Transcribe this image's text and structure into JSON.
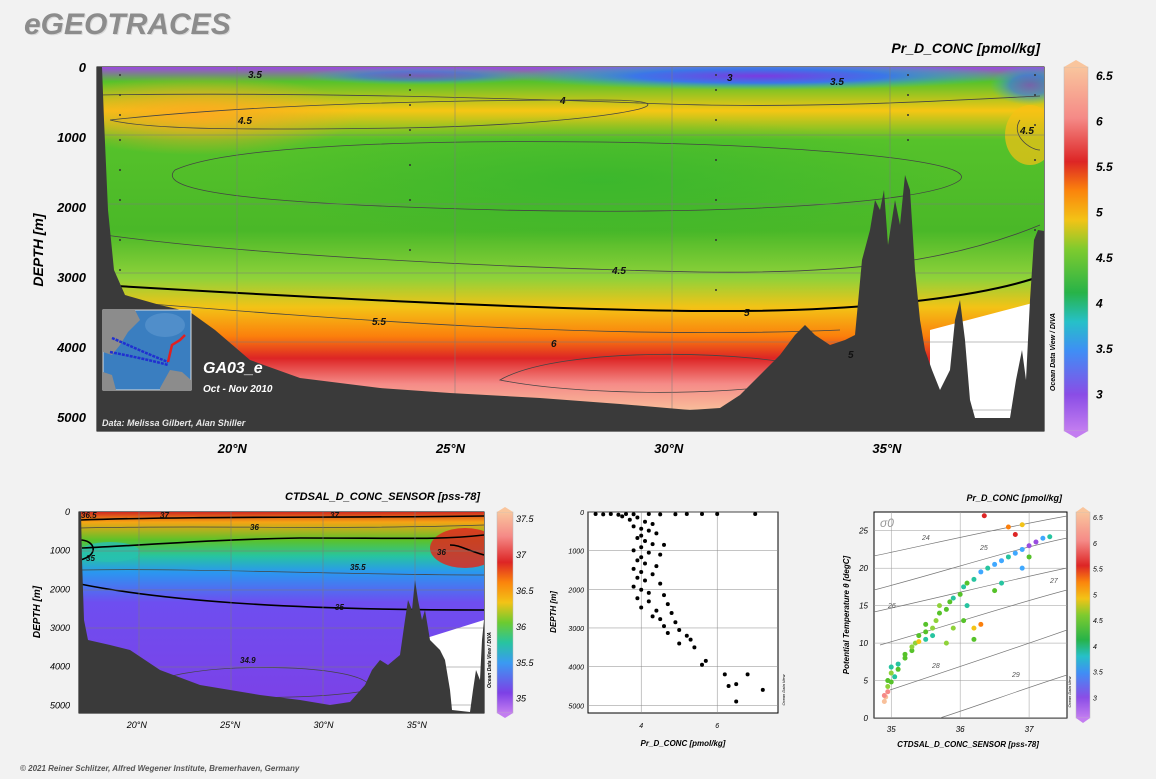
{
  "logo": "eGEOTRACES",
  "footer": "© 2021 Reiner Schlitzer, Alfred Wegener Institute, Bremerhaven, Germany",
  "main_section": {
    "title": "Pr_D_CONC [pmol/kg]",
    "ylabel": "DEPTH [m]",
    "ytick_labels": [
      "0",
      "1000",
      "2000",
      "3000",
      "4000",
      "5000"
    ],
    "ytick_values": [
      0,
      1000,
      2000,
      3000,
      4000,
      5000
    ],
    "xtick_labels": [
      "20°N",
      "25°N",
      "30°N",
      "35°N"
    ],
    "xtick_values": [
      20,
      25,
      30,
      35
    ],
    "xlim": [
      16.9,
      38.6
    ],
    "ylim": [
      0,
      5200
    ],
    "colorbar_labels": [
      "6.5",
      "6",
      "5.5",
      "5",
      "4.5",
      "4",
      "3.5",
      "3"
    ],
    "colorbar_values": [
      6.5,
      6,
      5.5,
      5,
      4.5,
      4,
      3.5,
      3
    ],
    "colorbar_range": [
      2.6,
      6.6
    ],
    "contour_labels": [
      "3.5",
      "3",
      "3.5",
      "4",
      "4.5",
      "4.5",
      "4.5",
      "5",
      "5.5",
      "6",
      "5"
    ],
    "cruise": "GA03_e",
    "dates": "Oct - Nov 2010",
    "credit": "Data: Melissa Gilbert, Alan Shiller",
    "odv_label": "Ocean Data View / DIVA"
  },
  "salinity_section": {
    "title": "CTDSAL_D_CONC_SENSOR [pss-78]",
    "ylabel": "DEPTH [m]",
    "ytick_labels": [
      "0",
      "1000",
      "2000",
      "3000",
      "4000",
      "5000"
    ],
    "ytick_values": [
      0,
      1000,
      2000,
      3000,
      4000,
      5000
    ],
    "xtick_labels": [
      "20°N",
      "25°N",
      "30°N",
      "35°N"
    ],
    "xtick_values": [
      20,
      25,
      30,
      35
    ],
    "xlim": [
      16.9,
      38.6
    ],
    "ylim": [
      0,
      5200
    ],
    "colorbar_labels": [
      "37.5",
      "37",
      "36.5",
      "36",
      "35.5",
      "35"
    ],
    "colorbar_values": [
      37.5,
      37,
      36.5,
      36,
      35.5,
      35
    ],
    "colorbar_range": [
      34.8,
      37.6
    ],
    "contour_labels": [
      "36.5",
      "37",
      "37",
      "36",
      "36",
      "35",
      "35.5",
      "35",
      "34.9"
    ],
    "odv_label": "Ocean Data View / DIVA"
  },
  "chart_data": [
    {
      "type": "heatmap",
      "title": "Pr_D_CONC [pmol/kg]",
      "xlabel": "",
      "ylabel": "DEPTH [m]",
      "x_ticks": [
        "20°N",
        "25°N",
        "30°N",
        "35°N"
      ],
      "ylim": [
        0,
        5200
      ],
      "colorbar_range": [
        2.6,
        6.6
      ],
      "colorscale": [
        "#9a4de0",
        "#3fa8ff",
        "#27c4a0",
        "#56c22a",
        "#8fd23a",
        "#f3c316",
        "#fb7f0c",
        "#dd2525",
        "#f58a87",
        "#f8c09a"
      ]
    },
    {
      "type": "heatmap",
      "title": "CTDSAL_D_CONC_SENSOR [pss-78]",
      "xlabel": "",
      "ylabel": "DEPTH [m]",
      "x_ticks": [
        "20°N",
        "25°N",
        "30°N",
        "35°N"
      ],
      "ylim": [
        0,
        5200
      ],
      "colorbar_range": [
        34.8,
        37.6
      ]
    },
    {
      "type": "scatter",
      "title": "",
      "xlabel": "Pr_D_CONC [pmol/kg]",
      "ylabel": "DEPTH [m]",
      "xtick_labels": [
        "4",
        "6"
      ],
      "xtick_values": [
        4,
        6
      ],
      "ytick_labels": [
        "0",
        "1000",
        "2000",
        "3000",
        "4000",
        "5000"
      ],
      "ytick_values": [
        0,
        1000,
        2000,
        3000,
        4000,
        5000
      ],
      "xlim": [
        2.6,
        7.6
      ],
      "ylim": [
        0,
        5200
      ],
      "odv_label": "Ocean Data View",
      "points": [
        [
          2.8,
          0
        ],
        [
          3.0,
          10
        ],
        [
          3.2,
          0
        ],
        [
          3.4,
          20
        ],
        [
          3.6,
          0
        ],
        [
          3.8,
          5
        ],
        [
          4.2,
          0
        ],
        [
          4.5,
          10
        ],
        [
          4.9,
          5
        ],
        [
          5.2,
          0
        ],
        [
          5.6,
          0
        ],
        [
          6.0,
          0
        ],
        [
          7.0,
          0
        ],
        [
          3.5,
          60
        ],
        [
          3.9,
          90
        ],
        [
          3.7,
          150
        ],
        [
          4.1,
          200
        ],
        [
          4.3,
          260
        ],
        [
          3.8,
          320
        ],
        [
          4.0,
          380
        ],
        [
          4.2,
          430
        ],
        [
          4.4,
          500
        ],
        [
          4.0,
          560
        ],
        [
          3.9,
          620
        ],
        [
          4.1,
          700
        ],
        [
          4.3,
          780
        ],
        [
          4.6,
          800
        ],
        [
          4.0,
          860
        ],
        [
          3.8,
          940
        ],
        [
          4.2,
          1000
        ],
        [
          4.5,
          1050
        ],
        [
          4.0,
          1120
        ],
        [
          3.9,
          1200
        ],
        [
          4.1,
          1280
        ],
        [
          4.4,
          1350
        ],
        [
          3.8,
          1420
        ],
        [
          4.0,
          1500
        ],
        [
          4.3,
          1560
        ],
        [
          3.9,
          1650
        ],
        [
          4.1,
          1720
        ],
        [
          4.5,
          1800
        ],
        [
          3.8,
          1880
        ],
        [
          4.0,
          1960
        ],
        [
          4.2,
          2040
        ],
        [
          4.6,
          2100
        ],
        [
          3.9,
          2180
        ],
        [
          4.2,
          2260
        ],
        [
          4.7,
          2330
        ],
        [
          4.0,
          2420
        ],
        [
          4.4,
          2500
        ],
        [
          4.8,
          2560
        ],
        [
          4.3,
          2650
        ],
        [
          4.5,
          2720
        ],
        [
          4.9,
          2800
        ],
        [
          4.6,
          2900
        ],
        [
          5.0,
          3000
        ],
        [
          4.7,
          3080
        ],
        [
          5.2,
          3150
        ],
        [
          5.3,
          3250
        ],
        [
          5.0,
          3350
        ],
        [
          5.4,
          3450
        ],
        [
          5.7,
          3800
        ],
        [
          5.6,
          3900
        ],
        [
          6.2,
          4150
        ],
        [
          6.3,
          4450
        ],
        [
          6.8,
          4150
        ],
        [
          6.5,
          4400
        ],
        [
          7.2,
          4550
        ],
        [
          6.5,
          4850
        ]
      ]
    },
    {
      "type": "scatter",
      "title": "Pr_D_CONC [pmol/kg]",
      "xlabel": "CTDSAL_D_CONC_SENSOR [pss-78]",
      "ylabel": "Potential Temperature θ [degC]",
      "xtick_labels": [
        "35",
        "36",
        "37"
      ],
      "xtick_values": [
        35,
        36,
        37
      ],
      "ytick_labels": [
        "0",
        "5",
        "10",
        "15",
        "20",
        "25"
      ],
      "ytick_values": [
        0,
        5,
        10,
        15,
        20,
        25
      ],
      "xlim": [
        34.75,
        37.55
      ],
      "ylim": [
        0,
        27.5
      ],
      "density_isolines": [
        "24",
        "25",
        "27",
        "26",
        "28",
        "29"
      ],
      "sigma_label": "σ0",
      "colorbar_labels": [
        "6.5",
        "6",
        "5.5",
        "5",
        "4.5",
        "4",
        "3.5",
        "3"
      ],
      "colorbar_values": [
        6.5,
        6,
        5.5,
        5,
        4.5,
        4,
        3.5,
        3
      ],
      "colorbar_range": [
        2.6,
        6.6
      ],
      "odv_label": "Ocean Data View",
      "points": [
        [
          34.9,
          2.2,
          6.4
        ],
        [
          34.92,
          2.8,
          6.2
        ],
        [
          34.95,
          3.5,
          5.9
        ],
        [
          34.9,
          3.0,
          6.1
        ],
        [
          34.95,
          4.2,
          4.4
        ],
        [
          35.0,
          4.8,
          3.8
        ],
        [
          35.05,
          5.5,
          3.7
        ],
        [
          35.0,
          6.0,
          4.2
        ],
        [
          35.1,
          6.5,
          4.0
        ],
        [
          35.1,
          7.2,
          3.6
        ],
        [
          35.2,
          8.0,
          4.1
        ],
        [
          35.3,
          9.0,
          3.9
        ],
        [
          35.2,
          8.5,
          4.0
        ],
        [
          35.35,
          10.0,
          4.2
        ],
        [
          35.4,
          11.0,
          3.8
        ],
        [
          35.5,
          11.5,
          4.0
        ],
        [
          35.5,
          12.5,
          4.1
        ],
        [
          35.6,
          12.0,
          4.5
        ],
        [
          35.65,
          13.0,
          4.3
        ],
        [
          35.7,
          14.0,
          4.0
        ],
        [
          35.8,
          14.5,
          3.9
        ],
        [
          35.85,
          15.5,
          4.1
        ],
        [
          35.9,
          16.0,
          3.7
        ],
        [
          36.0,
          16.5,
          4.0
        ],
        [
          36.05,
          17.5,
          3.6
        ],
        [
          36.1,
          18.0,
          3.8
        ],
        [
          36.2,
          18.5,
          3.5
        ],
        [
          36.3,
          19.5,
          3.4
        ],
        [
          36.4,
          20.0,
          3.7
        ],
        [
          36.5,
          20.5,
          3.3
        ],
        [
          36.6,
          21.0,
          3.2
        ],
        [
          36.7,
          21.5,
          3.6
        ],
        [
          36.8,
          22.0,
          3.1
        ],
        [
          36.9,
          22.5,
          3.3
        ],
        [
          37.0,
          23.0,
          2.9
        ],
        [
          37.1,
          23.5,
          3.0
        ],
        [
          37.2,
          24.0,
          3.2
        ],
        [
          37.3,
          24.2,
          3.6
        ],
        [
          35.5,
          10.5,
          3.6
        ],
        [
          35.6,
          11.0,
          3.5
        ],
        [
          35.3,
          9.5,
          4.6
        ],
        [
          35.4,
          10.2,
          4.8
        ],
        [
          36.2,
          12.0,
          4.9
        ],
        [
          36.3,
          12.5,
          5.0
        ],
        [
          36.2,
          10.5,
          4.1
        ],
        [
          35.8,
          10.0,
          4.3
        ],
        [
          35.0,
          6.8,
          3.5
        ],
        [
          34.95,
          5.0,
          3.9
        ],
        [
          35.7,
          15.0,
          4.4
        ],
        [
          36.1,
          15.0,
          3.7
        ],
        [
          36.5,
          17.0,
          4.1
        ],
        [
          36.6,
          18.0,
          3.6
        ],
        [
          36.9,
          20.0,
          3.3
        ],
        [
          37.0,
          21.5,
          4.0
        ],
        [
          36.7,
          25.5,
          5.2
        ],
        [
          36.8,
          24.5,
          5.6
        ],
        [
          36.9,
          25.8,
          4.8
        ],
        [
          36.35,
          27.0,
          5.6
        ],
        [
          35.9,
          12.0,
          4.2
        ],
        [
          36.05,
          13.0,
          4.0
        ]
      ]
    }
  ]
}
